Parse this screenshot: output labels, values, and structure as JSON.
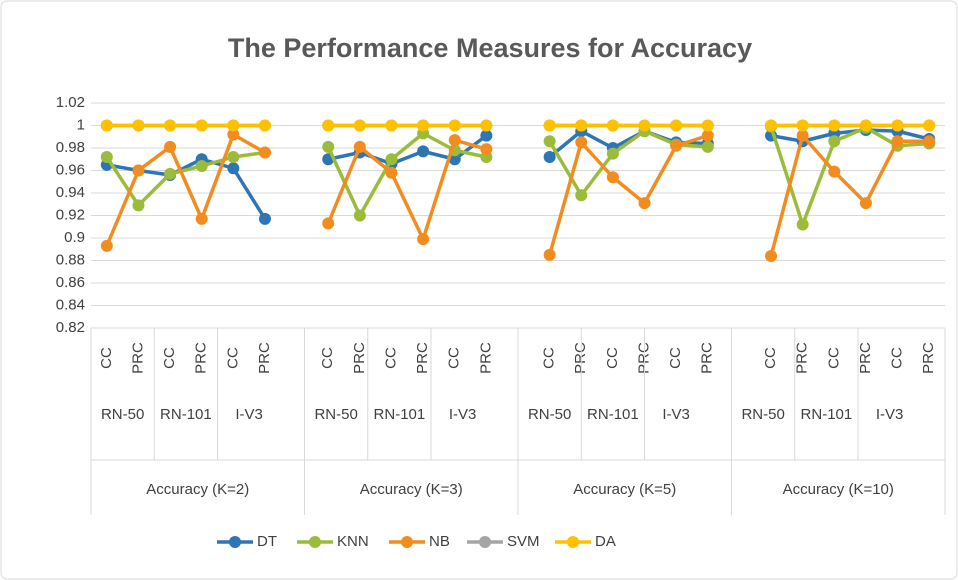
{
  "chart_data": {
    "type": "line",
    "title": "The Performance Measures for Accuracy",
    "categories": [
      "CC",
      "PRC",
      "CC",
      "PRC",
      "CC",
      "PRC",
      null,
      "CC",
      "PRC",
      "CC",
      "PRC",
      "CC",
      "PRC",
      null,
      "CC",
      "PRC",
      "CC",
      "PRC",
      "CC",
      "PRC",
      null,
      "CC",
      "PRC",
      "CC",
      "PRC",
      "CC",
      "PRC"
    ],
    "category_groups": [
      {
        "label": "Accuracy (K=2)",
        "subgroups": [
          "RN-50",
          "RN-101",
          "I-V3"
        ]
      },
      {
        "label": "Accuracy (K=3)",
        "subgroups": [
          "RN-50",
          "RN-101",
          "I-V3"
        ]
      },
      {
        "label": "Accuracy (K=5)",
        "subgroups": [
          "RN-50",
          "RN-101",
          "I-V3"
        ]
      },
      {
        "label": "Accuracy (K=10)",
        "subgroups": [
          "RN-50",
          "RN-101",
          "I-V3"
        ]
      }
    ],
    "series": [
      {
        "name": "DT",
        "color": "#2e75b6",
        "values": [
          0.965,
          0.96,
          0.956,
          0.97,
          0.962,
          0.917,
          null,
          0.97,
          0.976,
          0.966,
          0.977,
          0.97,
          0.991,
          null,
          0.972,
          0.995,
          0.98,
          0.995,
          0.985,
          0.984,
          null,
          0.991,
          0.986,
          0.993,
          0.996,
          0.995,
          0.988
        ]
      },
      {
        "name": "KNN",
        "color": "#9bbb3a",
        "values": [
          0.972,
          0.929,
          0.957,
          0.964,
          0.972,
          0.976,
          null,
          0.981,
          0.92,
          0.97,
          0.993,
          0.978,
          0.972,
          null,
          0.986,
          0.938,
          0.975,
          0.995,
          0.983,
          0.981,
          null,
          0.999,
          0.912,
          0.986,
          0.998,
          0.982,
          0.984
        ]
      },
      {
        "name": "NB",
        "color": "#f28c1e",
        "values": [
          0.893,
          0.96,
          0.981,
          0.917,
          0.992,
          0.976,
          null,
          0.913,
          0.981,
          0.958,
          0.899,
          0.987,
          0.979,
          null,
          0.885,
          0.985,
          0.954,
          0.931,
          0.982,
          0.991,
          null,
          0.884,
          0.991,
          0.959,
          0.931,
          0.986,
          0.986
        ]
      },
      {
        "name": "SVM",
        "color": "#a5a5a5",
        "values": [
          1,
          1,
          1,
          1,
          1,
          1,
          null,
          1,
          1,
          1,
          1,
          1,
          1,
          null,
          1,
          1,
          1,
          1,
          1,
          1,
          null,
          1,
          1,
          1,
          1,
          1,
          1
        ]
      },
      {
        "name": "DA",
        "color": "#ffc000",
        "values": [
          1,
          1,
          1,
          1,
          1,
          1,
          null,
          1,
          1,
          1,
          1,
          1,
          1,
          null,
          1,
          1,
          1,
          1,
          1,
          1,
          null,
          1,
          1,
          1,
          1,
          1,
          1
        ]
      }
    ],
    "ylim": [
      0.82,
      1.02
    ],
    "yticks": [
      0.82,
      0.84,
      0.86,
      0.88,
      0.9,
      0.92,
      0.94,
      0.96,
      0.98,
      1,
      1.02
    ],
    "grid": true,
    "legend": "bottom"
  }
}
